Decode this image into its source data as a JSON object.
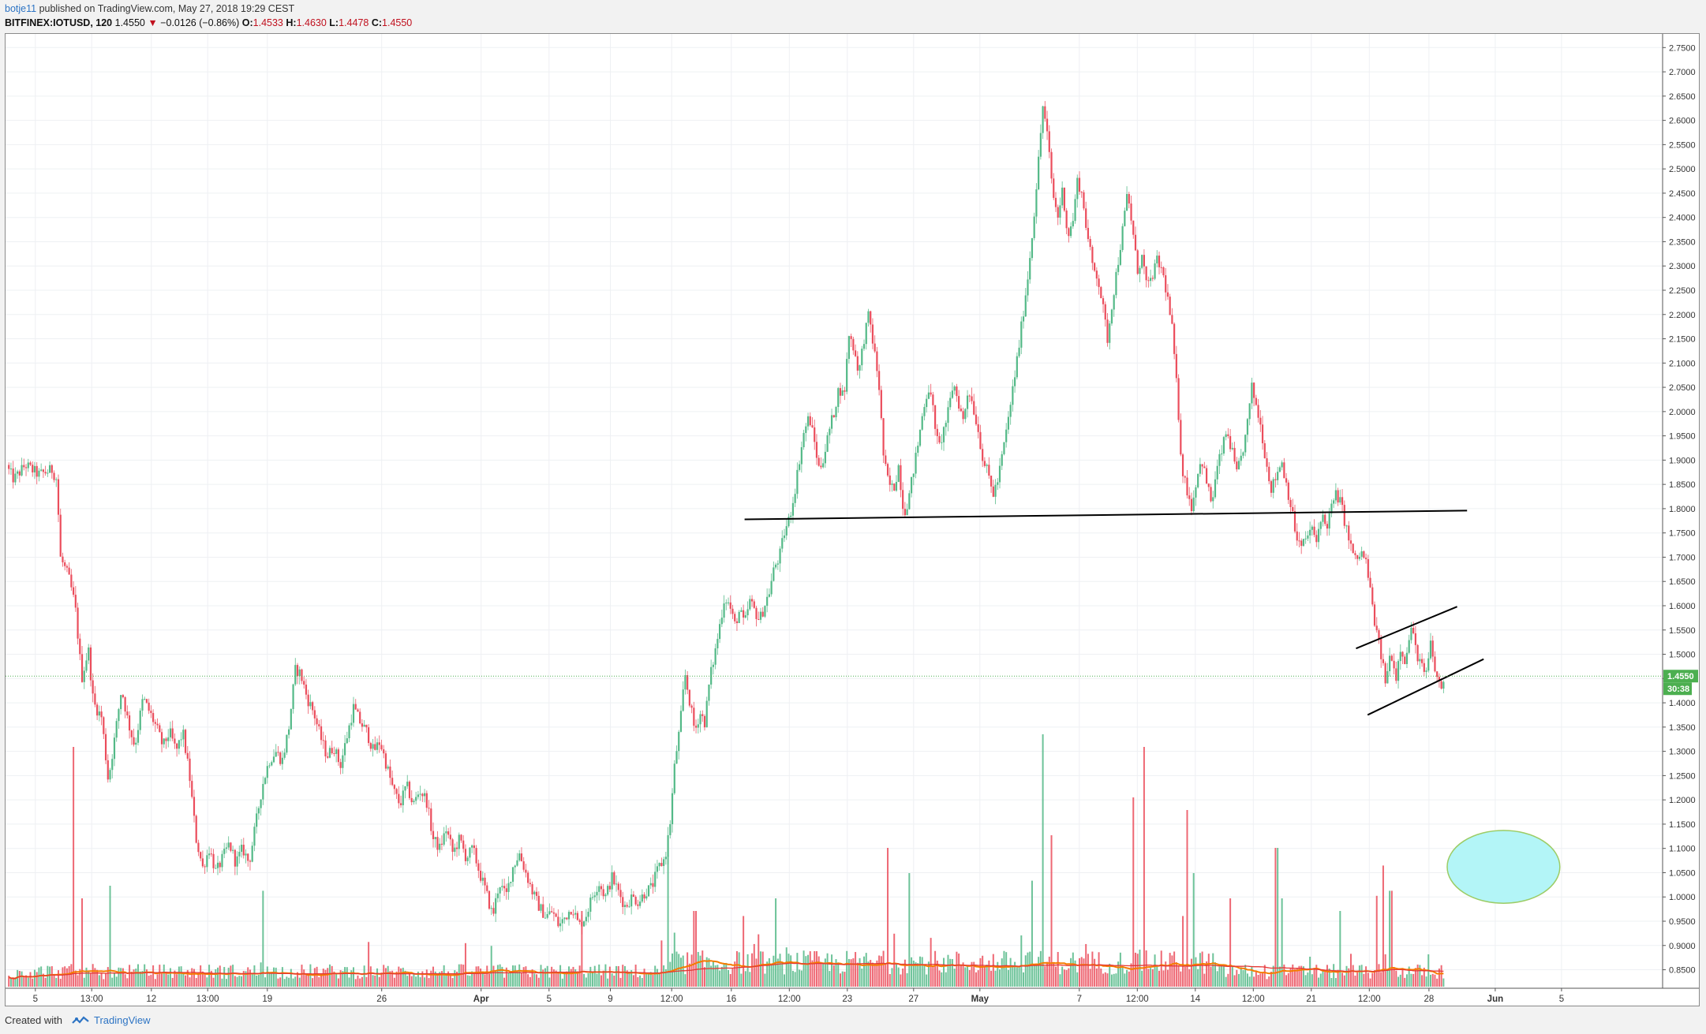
{
  "header": {
    "user": "botje11",
    "published": " published on TradingView.com, May 27, 2018 19:29 CEST",
    "symbol": "BITFINEX:IOTUSD, 120",
    "price": "1.4550",
    "change": "−0.0126 (−0.86%)",
    "o_label": "O:",
    "o_value": "1.4533",
    "h_label": "H:",
    "h_value": "1.4630",
    "l_label": "L:",
    "l_value": "1.4478",
    "c_label": "C:",
    "c_value": "1.4550"
  },
  "footer": {
    "created": "Created with",
    "brand": "TradingView"
  },
  "colors": {
    "up": "#53b987",
    "down": "#eb4d5c",
    "ma": "#f57c00",
    "ma2": "#e53935",
    "line": "#000000",
    "price_tag": "#4caf50",
    "ellipse_fill": "#b3f5f7",
    "ellipse_stroke": "#9ccc65"
  },
  "chart_data": {
    "type": "candlestick",
    "ylim": [
      0.82,
      2.77
    ],
    "y_ticks": [
      "2.7500",
      "2.7000",
      "2.6500",
      "2.6000",
      "2.5500",
      "2.5000",
      "2.4500",
      "2.4000",
      "2.3500",
      "2.3000",
      "2.2500",
      "2.2000",
      "2.1500",
      "2.1000",
      "2.0500",
      "2.0000",
      "1.9500",
      "1.9000",
      "1.8500",
      "1.8000",
      "1.7500",
      "1.7000",
      "1.6500",
      "1.6000",
      "1.5500",
      "1.5000",
      "1.4500",
      "1.4000",
      "1.3500",
      "1.3000",
      "1.2500",
      "1.2000",
      "1.1500",
      "1.1000",
      "1.0500",
      "1.0000",
      "0.9500",
      "0.9000",
      "0.8500"
    ],
    "x_ticks": [
      {
        "label": "5",
        "t": 0.018
      },
      {
        "label": "13:00",
        "t": 0.052
      },
      {
        "label": "12",
        "t": 0.088
      },
      {
        "label": "13:00",
        "t": 0.122
      },
      {
        "label": "19",
        "t": 0.158
      },
      {
        "label": "26",
        "t": 0.227
      },
      {
        "label": "Apr",
        "t": 0.287,
        "bold": true
      },
      {
        "label": "5",
        "t": 0.328
      },
      {
        "label": "9",
        "t": 0.365
      },
      {
        "label": "12:00",
        "t": 0.402
      },
      {
        "label": "16",
        "t": 0.438
      },
      {
        "label": "12:00",
        "t": 0.473
      },
      {
        "label": "23",
        "t": 0.508
      },
      {
        "label": "27",
        "t": 0.548
      },
      {
        "label": "May",
        "t": 0.588,
        "bold": true
      },
      {
        "label": "7",
        "t": 0.648
      },
      {
        "label": "12:00",
        "t": 0.683
      },
      {
        "label": "14",
        "t": 0.718
      },
      {
        "label": "12:00",
        "t": 0.753
      },
      {
        "label": "21",
        "t": 0.788
      },
      {
        "label": "12:00",
        "t": 0.823
      },
      {
        "label": "28",
        "t": 0.859
      },
      {
        "label": "Jun",
        "t": 0.899,
        "bold": true
      },
      {
        "label": "5",
        "t": 0.939
      }
    ],
    "price_path": [
      [
        0.0,
        1.89
      ],
      [
        0.005,
        1.86
      ],
      [
        0.012,
        1.89
      ],
      [
        0.02,
        1.87
      ],
      [
        0.028,
        1.88
      ],
      [
        0.031,
        1.86
      ],
      [
        0.033,
        1.7
      ],
      [
        0.038,
        1.66
      ],
      [
        0.042,
        1.6
      ],
      [
        0.046,
        1.45
      ],
      [
        0.05,
        1.51
      ],
      [
        0.053,
        1.4
      ],
      [
        0.058,
        1.37
      ],
      [
        0.062,
        1.24
      ],
      [
        0.066,
        1.33
      ],
      [
        0.07,
        1.43
      ],
      [
        0.074,
        1.36
      ],
      [
        0.078,
        1.31
      ],
      [
        0.083,
        1.41
      ],
      [
        0.087,
        1.38
      ],
      [
        0.091,
        1.35
      ],
      [
        0.095,
        1.31
      ],
      [
        0.099,
        1.34
      ],
      [
        0.103,
        1.3
      ],
      [
        0.107,
        1.34
      ],
      [
        0.111,
        1.25
      ],
      [
        0.115,
        1.12
      ],
      [
        0.119,
        1.06
      ],
      [
        0.123,
        1.1
      ],
      [
        0.127,
        1.05
      ],
      [
        0.131,
        1.08
      ],
      [
        0.135,
        1.11
      ],
      [
        0.139,
        1.07
      ],
      [
        0.143,
        1.1
      ],
      [
        0.147,
        1.07
      ],
      [
        0.151,
        1.15
      ],
      [
        0.155,
        1.23
      ],
      [
        0.159,
        1.28
      ],
      [
        0.163,
        1.3
      ],
      [
        0.167,
        1.28
      ],
      [
        0.171,
        1.35
      ],
      [
        0.175,
        1.47
      ],
      [
        0.178,
        1.46
      ],
      [
        0.182,
        1.41
      ],
      [
        0.186,
        1.38
      ],
      [
        0.19,
        1.33
      ],
      [
        0.194,
        1.29
      ],
      [
        0.198,
        1.31
      ],
      [
        0.202,
        1.27
      ],
      [
        0.206,
        1.33
      ],
      [
        0.21,
        1.39
      ],
      [
        0.214,
        1.36
      ],
      [
        0.218,
        1.34
      ],
      [
        0.222,
        1.3
      ],
      [
        0.226,
        1.32
      ],
      [
        0.23,
        1.27
      ],
      [
        0.234,
        1.22
      ],
      [
        0.238,
        1.19
      ],
      [
        0.242,
        1.23
      ],
      [
        0.246,
        1.19
      ],
      [
        0.25,
        1.22
      ],
      [
        0.254,
        1.2
      ],
      [
        0.258,
        1.12
      ],
      [
        0.262,
        1.1
      ],
      [
        0.266,
        1.14
      ],
      [
        0.27,
        1.09
      ],
      [
        0.274,
        1.12
      ],
      [
        0.278,
        1.08
      ],
      [
        0.282,
        1.1
      ],
      [
        0.286,
        1.05
      ],
      [
        0.29,
        1.01
      ],
      [
        0.294,
        0.96
      ],
      [
        0.298,
        1.03
      ],
      [
        0.302,
        1.0
      ],
      [
        0.306,
        1.06
      ],
      [
        0.31,
        1.09
      ],
      [
        0.314,
        1.05
      ],
      [
        0.318,
        1.01
      ],
      [
        0.322,
        0.98
      ],
      [
        0.326,
        0.96
      ],
      [
        0.33,
        0.97
      ],
      [
        0.334,
        0.94
      ],
      [
        0.338,
        0.96
      ],
      [
        0.342,
        0.98
      ],
      [
        0.346,
        0.94
      ],
      [
        0.35,
        0.96
      ],
      [
        0.354,
        1.0
      ],
      [
        0.358,
        1.03
      ],
      [
        0.362,
        1.0
      ],
      [
        0.366,
        1.04
      ],
      [
        0.37,
        1.01
      ],
      [
        0.374,
        0.98
      ],
      [
        0.378,
        1.0
      ],
      [
        0.382,
        0.99
      ],
      [
        0.386,
        1.01
      ],
      [
        0.39,
        1.02
      ],
      [
        0.394,
        1.06
      ],
      [
        0.398,
        1.08
      ],
      [
        0.401,
        1.15
      ],
      [
        0.404,
        1.28
      ],
      [
        0.407,
        1.35
      ],
      [
        0.41,
        1.46
      ],
      [
        0.413,
        1.4
      ],
      [
        0.416,
        1.34
      ],
      [
        0.419,
        1.38
      ],
      [
        0.422,
        1.36
      ],
      [
        0.425,
        1.45
      ],
      [
        0.428,
        1.5
      ],
      [
        0.431,
        1.56
      ],
      [
        0.434,
        1.62
      ],
      [
        0.437,
        1.6
      ],
      [
        0.44,
        1.56
      ],
      [
        0.443,
        1.59
      ],
      [
        0.446,
        1.56
      ],
      [
        0.449,
        1.61
      ],
      [
        0.452,
        1.59
      ],
      [
        0.455,
        1.57
      ],
      [
        0.458,
        1.6
      ],
      [
        0.461,
        1.63
      ],
      [
        0.464,
        1.68
      ],
      [
        0.467,
        1.7
      ],
      [
        0.47,
        1.75
      ],
      [
        0.473,
        1.78
      ],
      [
        0.476,
        1.83
      ],
      [
        0.479,
        1.9
      ],
      [
        0.482,
        1.96
      ],
      [
        0.485,
        1.99
      ],
      [
        0.488,
        1.94
      ],
      [
        0.491,
        1.88
      ],
      [
        0.494,
        1.91
      ],
      [
        0.497,
        1.96
      ],
      [
        0.5,
        2.0
      ],
      [
        0.503,
        2.05
      ],
      [
        0.506,
        2.03
      ],
      [
        0.509,
        2.16
      ],
      [
        0.512,
        2.13
      ],
      [
        0.515,
        2.08
      ],
      [
        0.518,
        2.15
      ],
      [
        0.521,
        2.2
      ],
      [
        0.524,
        2.13
      ],
      [
        0.527,
        2.06
      ],
      [
        0.53,
        1.9
      ],
      [
        0.533,
        1.85
      ],
      [
        0.536,
        1.84
      ],
      [
        0.539,
        1.89
      ],
      [
        0.542,
        1.79
      ],
      [
        0.545,
        1.82
      ],
      [
        0.548,
        1.88
      ],
      [
        0.551,
        1.94
      ],
      [
        0.554,
        2.01
      ],
      [
        0.557,
        2.05
      ],
      [
        0.56,
        2.0
      ],
      [
        0.563,
        1.92
      ],
      [
        0.566,
        1.96
      ],
      [
        0.569,
        2.0
      ],
      [
        0.572,
        2.06
      ],
      [
        0.575,
        2.02
      ],
      [
        0.578,
        1.98
      ],
      [
        0.581,
        2.05
      ],
      [
        0.584,
        2.01
      ],
      [
        0.587,
        1.96
      ],
      [
        0.59,
        1.9
      ],
      [
        0.593,
        1.87
      ],
      [
        0.596,
        1.83
      ],
      [
        0.599,
        1.86
      ],
      [
        0.602,
        1.92
      ],
      [
        0.605,
        1.98
      ],
      [
        0.608,
        2.05
      ],
      [
        0.611,
        2.12
      ],
      [
        0.614,
        2.2
      ],
      [
        0.617,
        2.28
      ],
      [
        0.62,
        2.38
      ],
      [
        0.623,
        2.5
      ],
      [
        0.626,
        2.63
      ],
      [
        0.629,
        2.56
      ],
      [
        0.632,
        2.45
      ],
      [
        0.635,
        2.4
      ],
      [
        0.638,
        2.46
      ],
      [
        0.641,
        2.36
      ],
      [
        0.644,
        2.39
      ],
      [
        0.647,
        2.48
      ],
      [
        0.65,
        2.44
      ],
      [
        0.653,
        2.36
      ],
      [
        0.656,
        2.3
      ],
      [
        0.659,
        2.28
      ],
      [
        0.662,
        2.22
      ],
      [
        0.665,
        2.15
      ],
      [
        0.668,
        2.23
      ],
      [
        0.671,
        2.3
      ],
      [
        0.674,
        2.37
      ],
      [
        0.677,
        2.45
      ],
      [
        0.68,
        2.38
      ],
      [
        0.683,
        2.29
      ],
      [
        0.686,
        2.32
      ],
      [
        0.689,
        2.25
      ],
      [
        0.692,
        2.28
      ],
      [
        0.695,
        2.31
      ],
      [
        0.698,
        2.29
      ],
      [
        0.701,
        2.24
      ],
      [
        0.704,
        2.17
      ],
      [
        0.707,
        2.04
      ],
      [
        0.71,
        1.88
      ],
      [
        0.713,
        1.84
      ],
      [
        0.716,
        1.8
      ],
      [
        0.719,
        1.87
      ],
      [
        0.722,
        1.9
      ],
      [
        0.725,
        1.85
      ],
      [
        0.728,
        1.81
      ],
      [
        0.731,
        1.88
      ],
      [
        0.734,
        1.92
      ],
      [
        0.737,
        1.96
      ],
      [
        0.74,
        1.92
      ],
      [
        0.743,
        1.87
      ],
      [
        0.746,
        1.91
      ],
      [
        0.749,
        1.96
      ],
      [
        0.752,
        2.05
      ],
      [
        0.755,
        2.01
      ],
      [
        0.758,
        1.96
      ],
      [
        0.761,
        1.89
      ],
      [
        0.764,
        1.84
      ],
      [
        0.767,
        1.87
      ],
      [
        0.77,
        1.9
      ],
      [
        0.773,
        1.85
      ],
      [
        0.776,
        1.8
      ],
      [
        0.779,
        1.74
      ],
      [
        0.782,
        1.72
      ],
      [
        0.785,
        1.74
      ],
      [
        0.788,
        1.76
      ],
      [
        0.791,
        1.73
      ],
      [
        0.794,
        1.79
      ],
      [
        0.797,
        1.76
      ],
      [
        0.8,
        1.8
      ],
      [
        0.803,
        1.83
      ],
      [
        0.806,
        1.81
      ],
      [
        0.809,
        1.76
      ],
      [
        0.812,
        1.72
      ],
      [
        0.815,
        1.69
      ],
      [
        0.818,
        1.71
      ],
      [
        0.821,
        1.69
      ],
      [
        0.824,
        1.62
      ],
      [
        0.827,
        1.55
      ],
      [
        0.83,
        1.5
      ],
      [
        0.833,
        1.44
      ],
      [
        0.836,
        1.51
      ],
      [
        0.839,
        1.45
      ],
      [
        0.842,
        1.52
      ],
      [
        0.845,
        1.48
      ],
      [
        0.848,
        1.56
      ],
      [
        0.851,
        1.51
      ],
      [
        0.854,
        1.48
      ],
      [
        0.857,
        1.45
      ],
      [
        0.86,
        1.52
      ],
      [
        0.863,
        1.46
      ],
      [
        0.866,
        1.43
      ],
      [
        0.869,
        1.45
      ]
    ],
    "volume_spikes": [
      [
        0.041,
        0.95
      ],
      [
        0.046,
        0.35
      ],
      [
        0.063,
        0.4
      ],
      [
        0.155,
        0.38
      ],
      [
        0.348,
        0.3
      ],
      [
        0.4,
        0.52
      ],
      [
        0.416,
        0.3
      ],
      [
        0.445,
        0.28
      ],
      [
        0.465,
        0.35
      ],
      [
        0.532,
        0.55
      ],
      [
        0.545,
        0.45
      ],
      [
        0.62,
        0.42
      ],
      [
        0.626,
        1.0
      ],
      [
        0.631,
        0.6
      ],
      [
        0.681,
        0.75
      ],
      [
        0.687,
        0.95
      ],
      [
        0.71,
        0.28
      ],
      [
        0.713,
        0.7
      ],
      [
        0.717,
        0.45
      ],
      [
        0.739,
        0.35
      ],
      [
        0.767,
        0.55
      ],
      [
        0.77,
        0.35
      ],
      [
        0.805,
        0.3
      ],
      [
        0.828,
        0.36
      ],
      [
        0.831,
        0.48
      ],
      [
        0.836,
        0.38
      ]
    ],
    "lines": [
      {
        "kind": "support",
        "x1": 0.446,
        "y1": 1.778,
        "x2": 0.882,
        "y2": 1.796
      },
      {
        "kind": "channel-top",
        "x1": 0.815,
        "y1": 1.512,
        "x2": 0.876,
        "y2": 1.598
      },
      {
        "kind": "channel-bottom",
        "x1": 0.822,
        "y1": 1.375,
        "x2": 0.892,
        "y2": 1.49
      }
    ],
    "ellipse": {
      "cx": 0.904,
      "cy": 1.062,
      "rx": 0.034,
      "ry": 0.075
    },
    "last_price": {
      "value": 1.455,
      "label": "1.4550",
      "timer": "30:38"
    }
  }
}
